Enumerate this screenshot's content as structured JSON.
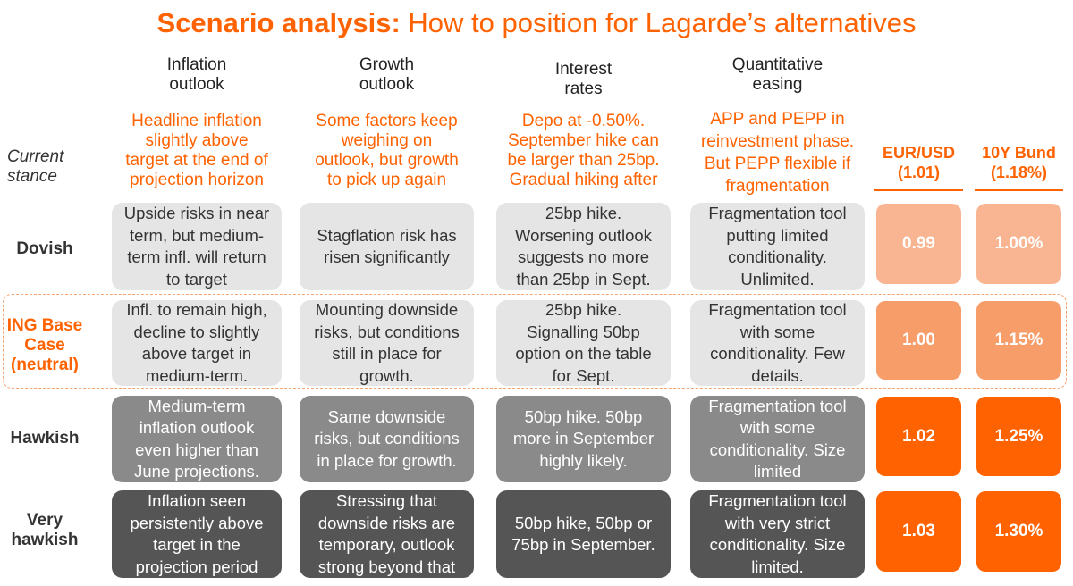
{
  "title": {
    "bold": "Scenario analysis:",
    "rest": "How to position for Lagarde’s alternatives"
  },
  "columns": [
    {
      "lines": [
        "Inflation",
        "outlook"
      ]
    },
    {
      "lines": [
        "Growth",
        "outlook"
      ]
    },
    {
      "lines": [
        "Interest",
        "rates"
      ]
    },
    {
      "lines": [
        "Quantitative",
        "easing"
      ]
    }
  ],
  "current_stance": {
    "label": [
      "Current",
      "stance"
    ],
    "cells": [
      [
        "Headline inflation",
        "slightly above",
        "target at the end of",
        "projection horizon"
      ],
      [
        "Some factors keep",
        "weighing on",
        "outlook, but growth",
        "to pick up again"
      ],
      [
        "Depo at -0.50%.",
        "September hike can",
        "be larger than 25bp.",
        "Gradual hiking after"
      ],
      [
        "APP and PEPP in",
        "reinvestment phase.",
        "But PEPP flexible if",
        "fragmentation"
      ]
    ]
  },
  "markets": [
    {
      "name": "EUR/USD",
      "current": "(1.01)"
    },
    {
      "name": "10Y Bund",
      "current": "(1.18%)"
    }
  ],
  "rows": [
    {
      "label": [
        "Dovish"
      ],
      "cells": [
        [
          "Upside risks in near",
          "term, but medium-",
          "term infl. will return",
          "to target"
        ],
        [
          "Stagflation risk has",
          "risen significantly"
        ],
        [
          "25bp hike.",
          "Worsening outlook",
          "suggests no more",
          "than 25bp in Sept."
        ],
        [
          "Fragmentation tool",
          "putting limited",
          "conditionality.",
          "Unlimited."
        ]
      ],
      "eurusd": "0.99",
      "bund": "1.00%"
    },
    {
      "label": [
        "ING Base",
        "Case",
        "(neutral)"
      ],
      "cells": [
        [
          "Infl. to remain high,",
          "decline to slightly",
          "above target in",
          "medium-term."
        ],
        [
          "Mounting downside",
          "risks, but conditions",
          "still in place for",
          "growth."
        ],
        [
          "25bp hike.",
          "Signalling 50bp",
          "option on the table",
          "for Sept."
        ],
        [
          "Fragmentation tool",
          "with some",
          "conditionality. Few",
          "details."
        ]
      ],
      "eurusd": "1.00",
      "bund": "1.15%"
    },
    {
      "label": [
        "Hawkish"
      ],
      "cells": [
        [
          "Medium-term",
          "inflation outlook",
          "even higher than",
          "June projections."
        ],
        [
          "Same downside",
          "risks, but conditions",
          "in place for growth."
        ],
        [
          "50bp hike. 50bp",
          "more in September",
          "highly likely."
        ],
        [
          "Fragmentation tool",
          "with some",
          "conditionality. Size",
          "limited"
        ]
      ],
      "eurusd": "1.02",
      "bund": "1.25%"
    },
    {
      "label": [
        "Very",
        "hawkish"
      ],
      "cells": [
        [
          "Inflation seen",
          "persistently above",
          "target in the",
          "projection period"
        ],
        [
          "Stressing that",
          "downside risks are",
          "temporary, outlook",
          "strong beyond that"
        ],
        [
          "50bp hike, 50bp or",
          "75bp in September."
        ],
        [
          "Fragmentation tool",
          "with very strict",
          "conditionality. Size",
          "limited."
        ]
      ],
      "eurusd": "1.03",
      "bund": "1.30%"
    }
  ],
  "colors": {
    "accent": "#ff6200",
    "row_fill": [
      "#e5e5e5",
      "#e5e5e5",
      "#8a8a8a",
      "#555555"
    ],
    "value_fill": [
      "#f9b591",
      "#f79d69",
      "#ff6200",
      "#ff6200"
    ]
  }
}
